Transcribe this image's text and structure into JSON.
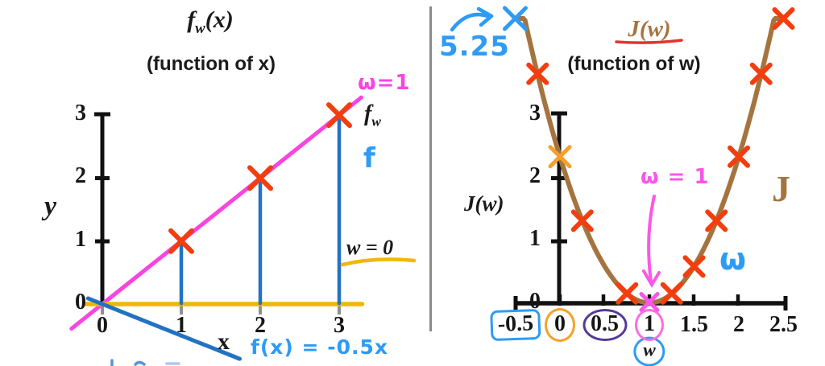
{
  "left_plot": {
    "title_f": "f",
    "title_sub": "w",
    "title_args": "(x)",
    "subtitle": "(function of x)",
    "y_axis_label": "y",
    "x_axis_label": "x",
    "y_ticks": [
      {
        "v": 3,
        "label": "3"
      },
      {
        "v": 2,
        "label": "2"
      },
      {
        "v": 1,
        "label": "1"
      },
      {
        "v": 0,
        "label": "0"
      }
    ],
    "x_ticks": [
      {
        "v": 0,
        "label": "0"
      },
      {
        "v": 1,
        "label": "1"
      },
      {
        "v": 2,
        "label": "2"
      },
      {
        "v": 3,
        "label": "3"
      }
    ],
    "annotations": {
      "w1_label": "ω=1",
      "fw_f": "f",
      "fw_sub": "w",
      "f_label": "f",
      "w0_label": "w = 0",
      "fx_formula": "f(x) = -0.5x"
    }
  },
  "right_plot": {
    "title": "J(w)",
    "subtitle": "(function of w)",
    "y_axis_label": "J(w)",
    "y_ticks": [
      {
        "v": 3,
        "label": "3"
      },
      {
        "v": 2,
        "label": "2"
      },
      {
        "v": 1,
        "label": "1"
      },
      {
        "v": 0,
        "label": "0"
      }
    ],
    "x_ticks": [
      {
        "v": -0.5,
        "label": "-0.5",
        "decor": "blue-box"
      },
      {
        "v": 0,
        "label": "0",
        "decor": "orange-circle"
      },
      {
        "v": 0.5,
        "label": "0.5",
        "decor": "purple-circle"
      },
      {
        "v": 1,
        "label": "1",
        "decor": "pink-circle"
      },
      {
        "v": 1.5,
        "label": "1.5"
      },
      {
        "v": 2,
        "label": "2"
      },
      {
        "v": 2.5,
        "label": "2.5"
      }
    ],
    "annotations": {
      "peak_value": "5.25",
      "w1_label": "ω = 1",
      "J_label": "J",
      "w_label": "ω",
      "w_circled": "w"
    }
  },
  "colors": {
    "magenta_line": "#f845e0",
    "yellow_line": "#f2b705",
    "blue_line": "#2272c4",
    "red_marker": "#f43d0e",
    "orange_marker": "#f5a028",
    "blue_hand": "#2e9bf5",
    "pink_hand": "#fa57e8",
    "brown_curve": "#a5743e",
    "purple_circle": "#54399b",
    "red_underline": "#e23333",
    "divider_gray": "#8a8a8a"
  },
  "chart_data": [
    {
      "type": "line",
      "title": "f_w(x) (function of x)",
      "xlabel": "x",
      "ylabel": "y",
      "xlim": [
        -0.4,
        3.3
      ],
      "ylim": [
        -1.0,
        3.1
      ],
      "grid": false,
      "series": [
        {
          "name": "w=1",
          "slope": 1,
          "intercept": 0,
          "x_range": [
            -0.39,
            3.28
          ],
          "color": "#f845e0",
          "width": 5
        },
        {
          "name": "w=0",
          "slope": 0,
          "intercept": 0,
          "x_range": [
            -0.21,
            3.29
          ],
          "color": "#f2b705",
          "width": 5.5
        },
        {
          "name": "f(x)=-0.5x",
          "slope": -0.5,
          "intercept": 0,
          "x_range": [
            -0.18,
            1.74
          ],
          "color": "#2272c4",
          "width": 5
        }
      ],
      "points": [
        {
          "x": 1,
          "y": 1
        },
        {
          "x": 2,
          "y": 2
        },
        {
          "x": 3,
          "y": 3
        }
      ],
      "marker": "x",
      "marker_color": "#f43d0e",
      "guide_color": "#2272c4"
    },
    {
      "type": "line",
      "title": "J(w) (function of w)",
      "xlabel": "w",
      "ylabel": "J(w)",
      "xlim": [
        -0.7,
        2.6
      ],
      "ylim": [
        0,
        3.2
      ],
      "grid": false,
      "curve": {
        "name": "J(w) = 2.33(w-1)^2",
        "vertex": [
          1,
          0
        ],
        "coeff": 2.33,
        "x_range": [
          -0.47,
          2.49
        ],
        "color": "#a5743e",
        "width": 6
      },
      "points_red": [
        {
          "w": -0.25,
          "J": 3.65
        },
        {
          "w": 0.25,
          "J": 1.31
        },
        {
          "w": 0.75,
          "J": 0.15
        },
        {
          "w": 1.25,
          "J": 0.15
        },
        {
          "w": 1.5,
          "J": 0.58
        },
        {
          "w": 1.75,
          "J": 1.31
        },
        {
          "w": 2,
          "J": 2.33
        },
        {
          "w": 2.25,
          "J": 3.65
        },
        {
          "w": 2.5,
          "J": 5.25
        }
      ],
      "point_blue": {
        "w": -0.5,
        "J": 5.25
      },
      "point_orange": {
        "w": 0,
        "J": 2.33
      },
      "point_min": {
        "w": 1,
        "J": 0
      }
    }
  ]
}
